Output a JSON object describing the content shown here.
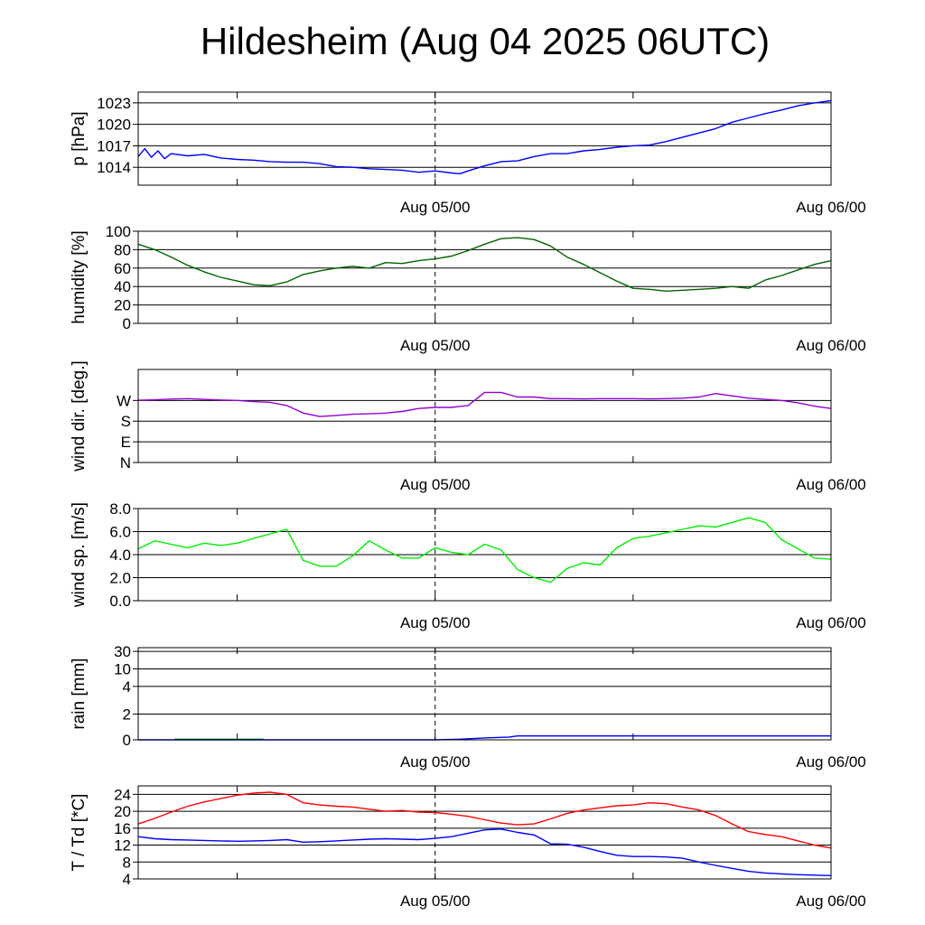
{
  "title": "Hildesheim (Aug 04 2025 06UTC)",
  "colors": {
    "pressure": "#0000ff",
    "humidity": "#006400",
    "wind_dir": "#9400d3",
    "wind_speed": "#00ee00",
    "rain_a": "#00aa00",
    "rain_b": "#0000ff",
    "temperature": "#ff0000",
    "dewpoint": "#0000ff",
    "grid": "#000000"
  },
  "chart_data": [
    {
      "type": "line",
      "id": "pressure",
      "ylabel": "p [hPa]",
      "ylim": [
        1011.5,
        1024.5
      ],
      "yticks": [
        1014,
        1017,
        1020,
        1023
      ],
      "ytick_labels": [
        "1014",
        "1017",
        "1020",
        "1023"
      ],
      "xlim_hours": [
        0,
        42
      ],
      "xtick_hours": [
        6,
        18,
        30
      ],
      "xtick_labels": [
        {
          "hour": 18,
          "label": "Aug 05/00"
        },
        {
          "hour": 42,
          "label": "Aug 06/00"
        }
      ],
      "series": [
        {
          "color_key": "pressure",
          "x": [
            0,
            0.4,
            0.8,
            1.2,
            1.6,
            2,
            3,
            4,
            5,
            6,
            7,
            8,
            9,
            10,
            11,
            12,
            13,
            14,
            15,
            16,
            17,
            18,
            19,
            19.5,
            20,
            21,
            22,
            23,
            24,
            25,
            26,
            27,
            28,
            29,
            30,
            31,
            32,
            33,
            34,
            35,
            36,
            37,
            38,
            39,
            40,
            41,
            42
          ],
          "y": [
            1015.5,
            1016.6,
            1015.4,
            1016.3,
            1015.2,
            1015.9,
            1015.6,
            1015.8,
            1015.3,
            1015.1,
            1015.0,
            1014.8,
            1014.7,
            1014.7,
            1014.5,
            1014.1,
            1014.0,
            1013.8,
            1013.7,
            1013.6,
            1013.3,
            1013.5,
            1013.2,
            1013.1,
            1013.5,
            1014.2,
            1014.8,
            1014.9,
            1015.5,
            1015.9,
            1015.9,
            1016.3,
            1016.5,
            1016.8,
            1017.0,
            1017.1,
            1017.6,
            1018.2,
            1018.8,
            1019.4,
            1020.3,
            1020.9,
            1021.5,
            1022.0,
            1022.6,
            1023.0,
            1023.3
          ]
        }
      ]
    },
    {
      "type": "line",
      "id": "humidity",
      "ylabel": "humidity [%]",
      "ylim": [
        0,
        100
      ],
      "yticks": [
        0,
        20,
        40,
        60,
        80,
        100
      ],
      "ytick_labels": [
        "0",
        "20",
        "40",
        "60",
        "80",
        "100"
      ],
      "xlim_hours": [
        0,
        42
      ],
      "xtick_hours": [
        6,
        18,
        30
      ],
      "xtick_labels": [
        {
          "hour": 18,
          "label": "Aug 05/00"
        },
        {
          "hour": 42,
          "label": "Aug 06/00"
        }
      ],
      "series": [
        {
          "color_key": "humidity",
          "x": [
            0,
            1,
            2,
            3,
            4,
            5,
            6,
            7,
            8,
            9,
            10,
            11,
            12,
            13,
            14,
            15,
            16,
            17,
            18,
            19,
            20,
            21,
            22,
            23,
            24,
            25,
            26,
            27,
            28,
            29,
            30,
            31,
            32,
            33,
            34,
            35,
            36,
            37,
            38,
            39,
            40,
            41,
            42
          ],
          "y": [
            86,
            80,
            72,
            63,
            56,
            50,
            46,
            42,
            41,
            45,
            53,
            57,
            60,
            62,
            60,
            66,
            65,
            68,
            70,
            73,
            79,
            86,
            92,
            93,
            91,
            84,
            72,
            64,
            55,
            46,
            38,
            37,
            35,
            36,
            37,
            38,
            40,
            38,
            47,
            52,
            58,
            64,
            68
          ]
        }
      ]
    },
    {
      "type": "line",
      "id": "wind_dir",
      "ylabel": "wind dir. [deg.]",
      "ylim": [
        0,
        405
      ],
      "yticks": [
        0,
        90,
        180,
        270
      ],
      "ytick_labels": [
        "N",
        "E",
        "S",
        "W"
      ],
      "xlim_hours": [
        0,
        42
      ],
      "xtick_hours": [
        6,
        18,
        30
      ],
      "xtick_labels": [
        {
          "hour": 18,
          "label": "Aug 05/00"
        },
        {
          "hour": 42,
          "label": "Aug 06/00"
        }
      ],
      "series": [
        {
          "color_key": "wind_dir",
          "x": [
            0,
            1,
            2,
            3,
            4,
            5,
            6,
            7,
            8,
            9,
            10,
            11,
            12,
            13,
            14,
            15,
            16,
            17,
            18,
            19,
            20,
            21,
            22,
            23,
            24,
            25,
            26,
            27,
            28,
            29,
            30,
            31,
            32,
            33,
            34,
            35,
            36,
            37,
            38,
            39,
            40,
            41,
            42
          ],
          "y": [
            271,
            273,
            276,
            278,
            275,
            272,
            270,
            265,
            262,
            248,
            215,
            200,
            205,
            210,
            212,
            215,
            222,
            235,
            240,
            240,
            248,
            305,
            305,
            285,
            285,
            278,
            278,
            277,
            278,
            278,
            278,
            277,
            278,
            280,
            285,
            300,
            290,
            280,
            275,
            270,
            260,
            245,
            235
          ]
        }
      ]
    },
    {
      "type": "line",
      "id": "wind_speed",
      "ylabel": "wind sp. [m/s]",
      "ylim": [
        0,
        8.0
      ],
      "yticks": [
        0,
        2,
        4,
        6,
        8
      ],
      "ytick_labels": [
        "0.0",
        "2.0",
        "4.0",
        "6.0",
        "8.0"
      ],
      "xlim_hours": [
        0,
        42
      ],
      "xtick_hours": [
        6,
        18,
        30
      ],
      "xtick_labels": [
        {
          "hour": 18,
          "label": "Aug 05/00"
        },
        {
          "hour": 42,
          "label": "Aug 06/00"
        }
      ],
      "series": [
        {
          "color_key": "wind_speed",
          "x": [
            0,
            1,
            2,
            3,
            4,
            5,
            6,
            7,
            8,
            9,
            10,
            11,
            12,
            13,
            14,
            15,
            16,
            17,
            18,
            19,
            20,
            21,
            22,
            23,
            24,
            25,
            26,
            27,
            28,
            29,
            30,
            31,
            32,
            33,
            34,
            35,
            36,
            37,
            38,
            39,
            40,
            41,
            42
          ],
          "y": [
            4.5,
            5.2,
            4.9,
            4.6,
            5.0,
            4.8,
            5.0,
            5.4,
            5.8,
            6.2,
            3.5,
            3.0,
            3.0,
            3.9,
            5.2,
            4.4,
            3.7,
            3.7,
            4.6,
            4.2,
            4.0,
            4.9,
            4.4,
            2.7,
            2.0,
            1.6,
            2.8,
            3.3,
            3.1,
            4.6,
            5.4,
            5.6,
            5.9,
            6.2,
            6.5,
            6.4,
            6.8,
            7.2,
            6.8,
            5.3,
            4.5,
            3.7,
            3.6
          ]
        }
      ]
    },
    {
      "type": "line",
      "id": "rain",
      "ylabel": "rain [mm]",
      "ylim": [
        0,
        32
      ],
      "yticks": [
        0,
        2,
        4,
        10,
        30
      ],
      "ytick_labels": [
        "0",
        "2",
        "4",
        "10",
        "30"
      ],
      "xlim_hours": [
        0,
        42
      ],
      "xtick_hours": [
        6,
        18,
        30
      ],
      "xtick_labels": [
        {
          "hour": 18,
          "label": "Aug 05/00"
        },
        {
          "hour": 42,
          "label": "Aug 06/00"
        }
      ],
      "series": [
        {
          "color_key": "rain_a",
          "x": [
            2.2,
            7.6
          ],
          "y": [
            0.05,
            0.05
          ]
        },
        {
          "color_key": "rain_b",
          "x": [
            0,
            18,
            19.5,
            21,
            22.5,
            23,
            42
          ],
          "y": [
            0,
            0,
            0.05,
            0.15,
            0.22,
            0.3,
            0.3
          ]
        }
      ]
    },
    {
      "type": "line",
      "id": "temperature",
      "ylabel": "T / Td [*C]",
      "ylim": [
        4,
        26
      ],
      "yticks": [
        4,
        8,
        12,
        16,
        20,
        24
      ],
      "ytick_labels": [
        "4",
        "8",
        "12",
        "16",
        "20",
        "24"
      ],
      "xlim_hours": [
        0,
        42
      ],
      "xtick_hours": [
        6,
        18,
        30
      ],
      "xtick_labels": [
        {
          "hour": 18,
          "label": "Aug 05/00"
        },
        {
          "hour": 42,
          "label": "Aug 06/00"
        }
      ],
      "series": [
        {
          "color_key": "temperature",
          "x": [
            0,
            1,
            2,
            3,
            4,
            5,
            6,
            7,
            8,
            9,
            10,
            11,
            12,
            13,
            14,
            15,
            16,
            17,
            18,
            19,
            20,
            21,
            22,
            23,
            24,
            25,
            26,
            27,
            28,
            29,
            30,
            31,
            32,
            33,
            34,
            35,
            36,
            37,
            38,
            39,
            40,
            41,
            42
          ],
          "y": [
            17.0,
            18.3,
            19.8,
            21.2,
            22.2,
            23.0,
            23.8,
            24.3,
            24.5,
            24.0,
            22.0,
            21.5,
            21.2,
            21.0,
            20.5,
            20.0,
            20.2,
            19.8,
            19.7,
            19.3,
            18.8,
            18.0,
            17.2,
            16.8,
            17.0,
            18.2,
            19.5,
            20.3,
            20.8,
            21.3,
            21.5,
            22.0,
            21.8,
            21.0,
            20.3,
            19.0,
            17.0,
            15.2,
            14.5,
            14.0,
            13.0,
            12.0,
            11.3
          ]
        },
        {
          "color_key": "dewpoint",
          "x": [
            0,
            1,
            2,
            3,
            4,
            5,
            6,
            7,
            8,
            9,
            10,
            11,
            12,
            13,
            14,
            15,
            16,
            17,
            18,
            19,
            20,
            21,
            22,
            23,
            24,
            25,
            26,
            27,
            28,
            29,
            30,
            31,
            32,
            33,
            34,
            35,
            36,
            37,
            38,
            39,
            40,
            41,
            42
          ],
          "y": [
            14.0,
            13.5,
            13.3,
            13.2,
            13.1,
            13.0,
            12.9,
            13.0,
            13.1,
            13.3,
            12.7,
            12.8,
            13.0,
            13.2,
            13.4,
            13.5,
            13.4,
            13.3,
            13.6,
            14.0,
            14.8,
            15.6,
            15.8,
            15.0,
            14.4,
            12.3,
            12.2,
            11.5,
            10.5,
            9.6,
            9.3,
            9.3,
            9.2,
            8.9,
            8.0,
            7.2,
            6.5,
            5.8,
            5.4,
            5.2,
            5.0,
            4.9,
            4.8
          ]
        }
      ]
    }
  ]
}
